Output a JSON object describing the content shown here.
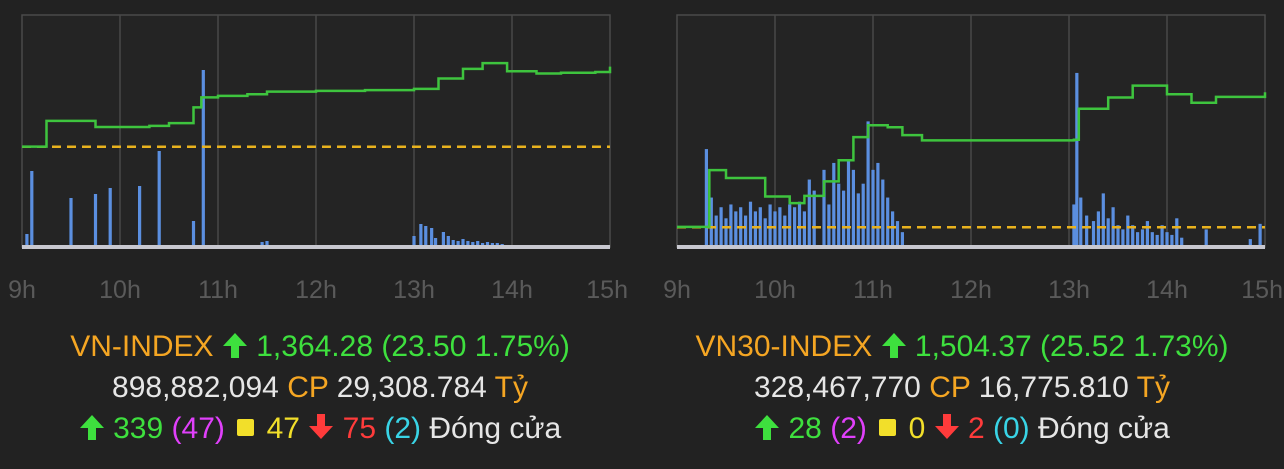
{
  "chart_data": [
    {
      "type": "line",
      "name": "VN-INDEX",
      "x_ticks": [
        "9h",
        "10h",
        "11h",
        "12h",
        "13h",
        "14h",
        "15h"
      ],
      "reference_value": 1340.78,
      "ylim": [
        1315,
        1375
      ],
      "grid": true,
      "line_color": "#3ec43e",
      "ref_color": "#e8b21e",
      "bar_color": "#5b8fe0",
      "price": [
        [
          9.0,
          1340.8
        ],
        [
          9.25,
          1347.5
        ],
        [
          9.75,
          1345.9
        ],
        [
          10.3,
          1346.2
        ],
        [
          10.5,
          1346.9
        ],
        [
          10.75,
          1351.0
        ],
        [
          10.83,
          1353.6
        ],
        [
          11.0,
          1354.0
        ],
        [
          11.3,
          1354.4
        ],
        [
          11.5,
          1355.1
        ],
        [
          12.0,
          1355.3
        ],
        [
          12.5,
          1355.5
        ],
        [
          13.0,
          1355.8
        ],
        [
          13.25,
          1358.5
        ],
        [
          13.5,
          1361.0
        ],
        [
          13.7,
          1362.5
        ],
        [
          13.95,
          1360.4
        ],
        [
          14.25,
          1359.8
        ],
        [
          14.5,
          1360.0
        ],
        [
          14.85,
          1360.2
        ],
        [
          15.0,
          1361.6
        ]
      ],
      "volume": [
        [
          9.05,
          12
        ],
        [
          9.1,
          75
        ],
        [
          9.5,
          48
        ],
        [
          9.75,
          52
        ],
        [
          9.9,
          58
        ],
        [
          10.2,
          60
        ],
        [
          10.4,
          95
        ],
        [
          10.75,
          25
        ],
        [
          10.85,
          176
        ],
        [
          11.45,
          4
        ],
        [
          11.5,
          5
        ],
        [
          13.0,
          10
        ],
        [
          13.07,
          22
        ],
        [
          13.12,
          20
        ],
        [
          13.18,
          18
        ],
        [
          13.22,
          8
        ],
        [
          13.3,
          14
        ],
        [
          13.35,
          10
        ],
        [
          13.4,
          6
        ],
        [
          13.45,
          5
        ],
        [
          13.5,
          7
        ],
        [
          13.55,
          5
        ],
        [
          13.6,
          4
        ],
        [
          13.65,
          5
        ],
        [
          13.7,
          3
        ],
        [
          13.75,
          4
        ],
        [
          13.8,
          3
        ],
        [
          13.85,
          3
        ],
        [
          13.9,
          2
        ]
      ],
      "volume_max": 180
    },
    {
      "type": "line",
      "name": "VN30-INDEX",
      "x_ticks": [
        "9h",
        "10h",
        "11h",
        "12h",
        "13h",
        "14h",
        "15h"
      ],
      "reference_value": 1478.85,
      "ylim": [
        1476,
        1511
      ],
      "grid": true,
      "line_color": "#3ec43e",
      "ref_color": "#e8b21e",
      "bar_color": "#5b8fe0",
      "price": [
        [
          9.0,
          1478.9
        ],
        [
          9.25,
          1478.9
        ],
        [
          9.33,
          1487.5
        ],
        [
          9.5,
          1486.3
        ],
        [
          9.9,
          1483.5
        ],
        [
          10.15,
          1482.5
        ],
        [
          10.3,
          1483.6
        ],
        [
          10.5,
          1485.8
        ],
        [
          10.65,
          1489.0
        ],
        [
          10.8,
          1492.5
        ],
        [
          10.95,
          1494.3
        ],
        [
          11.15,
          1494.0
        ],
        [
          11.3,
          1492.8
        ],
        [
          11.5,
          1492.0
        ],
        [
          12.0,
          1492.0
        ],
        [
          12.5,
          1492.0
        ],
        [
          13.05,
          1492.1
        ],
        [
          13.1,
          1496.8
        ],
        [
          13.4,
          1498.5
        ],
        [
          13.65,
          1500.3
        ],
        [
          14.0,
          1499.0
        ],
        [
          14.25,
          1497.7
        ],
        [
          14.5,
          1498.6
        ],
        [
          14.85,
          1498.6
        ],
        [
          15.0,
          1499.3
        ]
      ],
      "volume": [
        [
          9.3,
          70
        ],
        [
          9.35,
          35
        ],
        [
          9.4,
          22
        ],
        [
          9.45,
          28
        ],
        [
          9.5,
          20
        ],
        [
          9.55,
          30
        ],
        [
          9.6,
          25
        ],
        [
          9.65,
          28
        ],
        [
          9.7,
          22
        ],
        [
          9.75,
          32
        ],
        [
          9.8,
          25
        ],
        [
          9.85,
          28
        ],
        [
          9.9,
          20
        ],
        [
          9.95,
          30
        ],
        [
          10.0,
          25
        ],
        [
          10.05,
          28
        ],
        [
          10.1,
          22
        ],
        [
          10.15,
          30
        ],
        [
          10.2,
          28
        ],
        [
          10.25,
          32
        ],
        [
          10.3,
          25
        ],
        [
          10.35,
          48
        ],
        [
          10.4,
          40
        ],
        [
          10.5,
          55
        ],
        [
          10.55,
          30
        ],
        [
          10.6,
          60
        ],
        [
          10.65,
          45
        ],
        [
          10.7,
          40
        ],
        [
          10.75,
          62
        ],
        [
          10.8,
          55
        ],
        [
          10.85,
          38
        ],
        [
          10.9,
          45
        ],
        [
          10.95,
          90
        ],
        [
          11.0,
          55
        ],
        [
          11.05,
          60
        ],
        [
          11.1,
          48
        ],
        [
          11.15,
          35
        ],
        [
          11.2,
          25
        ],
        [
          11.25,
          18
        ],
        [
          11.3,
          10
        ],
        [
          13.05,
          30
        ],
        [
          13.08,
          125
        ],
        [
          13.12,
          35
        ],
        [
          13.18,
          22
        ],
        [
          13.25,
          18
        ],
        [
          13.3,
          25
        ],
        [
          13.35,
          38
        ],
        [
          13.4,
          20
        ],
        [
          13.45,
          28
        ],
        [
          13.5,
          15
        ],
        [
          13.55,
          12
        ],
        [
          13.6,
          22
        ],
        [
          13.65,
          15
        ],
        [
          13.7,
          10
        ],
        [
          13.75,
          12
        ],
        [
          13.8,
          18
        ],
        [
          13.85,
          10
        ],
        [
          13.9,
          8
        ],
        [
          13.95,
          15
        ],
        [
          14.0,
          10
        ],
        [
          14.05,
          8
        ],
        [
          14.1,
          20
        ],
        [
          14.15,
          6
        ],
        [
          14.4,
          12
        ],
        [
          14.85,
          5
        ],
        [
          14.95,
          16
        ]
      ],
      "volume_max": 130
    }
  ],
  "panels": [
    {
      "index_name": "VN-INDEX",
      "value": "1,364.28",
      "change": "(23.50 1.75%)",
      "volume": "898,882,094",
      "volume_unit": "CP",
      "turnover": "29,308.784",
      "turnover_unit": "Tỷ",
      "advances": "339",
      "ceiling": "(47)",
      "unchanged": "47",
      "declines": "75",
      "floor": "(2)",
      "status": "Đóng cửa"
    },
    {
      "index_name": "VN30-INDEX",
      "value": "1,504.37",
      "change": "(25.52 1.73%)",
      "volume": "328,467,770",
      "volume_unit": "CP",
      "turnover": "16,775.810",
      "turnover_unit": "Tỷ",
      "advances": "28",
      "ceiling": "(2)",
      "unchanged": "0",
      "declines": "2",
      "floor": "(0)",
      "status": "Đóng cửa"
    }
  ],
  "colors": {
    "background": "#222222",
    "index_name": "#f5a623",
    "up": "#3ee03e",
    "down": "#ff3b3b",
    "ceiling": "#e040fb",
    "floor": "#39d4e6",
    "unchanged": "#f2df2a"
  },
  "icons": [
    "up-arrow-icon",
    "square-icon",
    "down-arrow-icon"
  ]
}
